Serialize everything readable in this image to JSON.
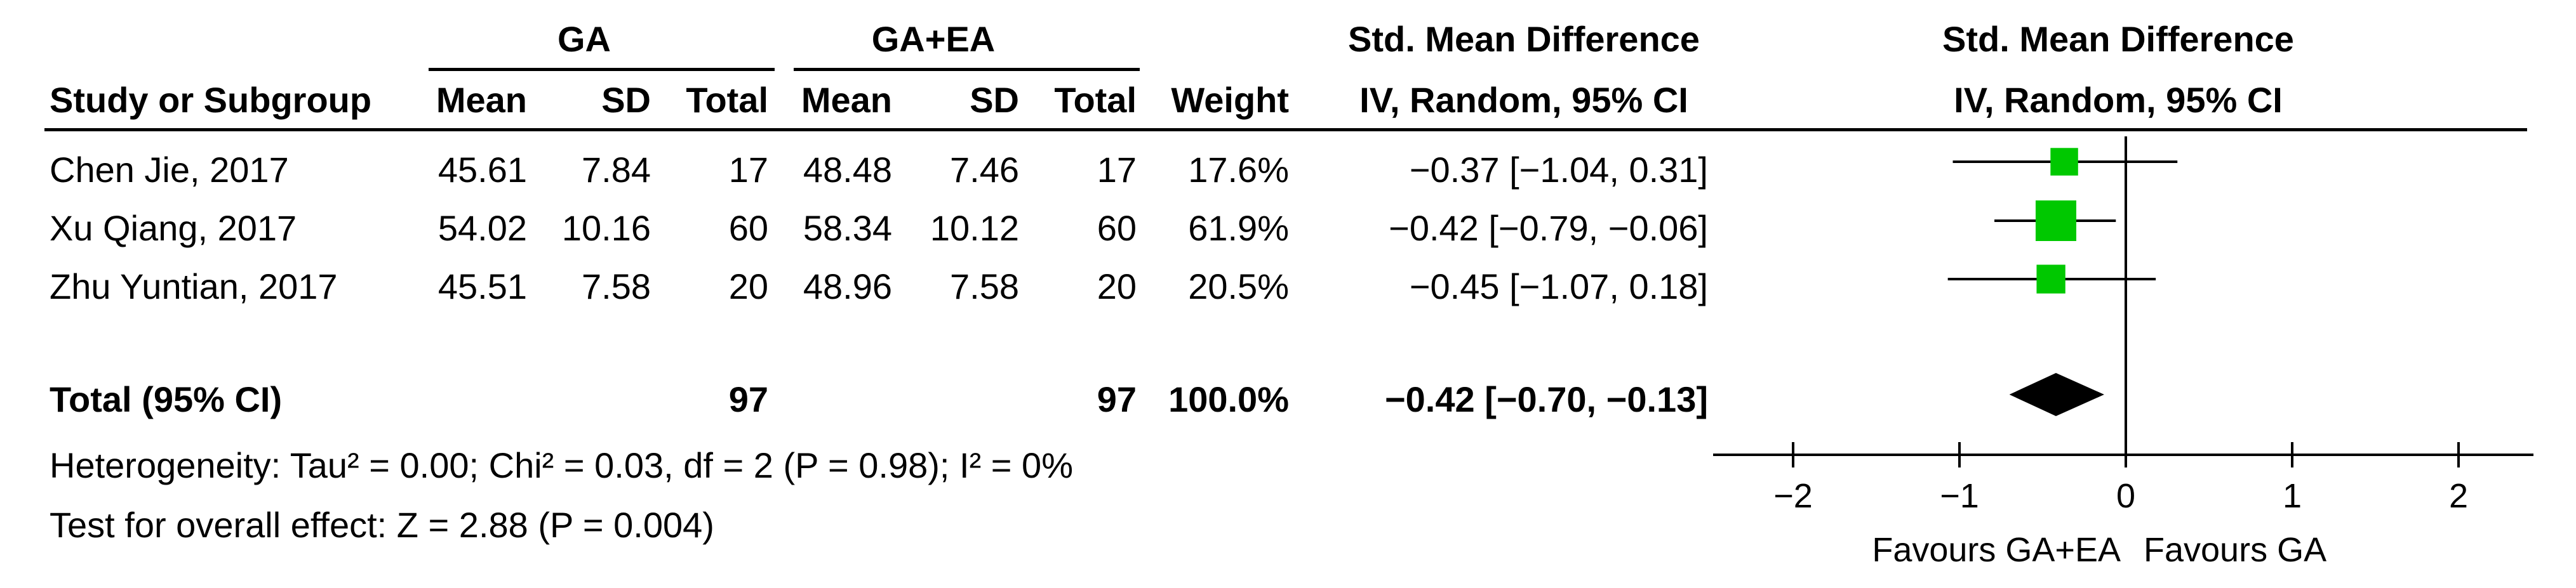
{
  "header": {
    "group1": "GA",
    "group2": "GA+EA",
    "effect_title": "Std. Mean Difference",
    "effect_subtitle": "IV, Random, 95% CI",
    "plot_title": "Std. Mean Difference",
    "plot_subtitle": "IV, Random, 95% CI"
  },
  "columns": {
    "study": "Study or Subgroup",
    "mean1": "Mean",
    "sd1": "SD",
    "total1": "Total",
    "mean2": "Mean",
    "sd2": "SD",
    "total2": "Total",
    "weight": "Weight"
  },
  "studies": [
    {
      "name": "Chen Jie, 2017",
      "mean1": "45.61",
      "sd1": "7.84",
      "total1": "17",
      "mean2": "48.48",
      "sd2": "7.46",
      "total2": "17",
      "weight": "17.6%",
      "ci_text": "−0.37 [−1.04, 0.31]"
    },
    {
      "name": "Xu Qiang, 2017",
      "mean1": "54.02",
      "sd1": "10.16",
      "total1": "60",
      "mean2": "58.34",
      "sd2": "10.12",
      "total2": "60",
      "weight": "61.9%",
      "ci_text": "−0.42 [−0.79, −0.06]"
    },
    {
      "name": "Zhu Yuntian, 2017",
      "mean1": "45.51",
      "sd1": "7.58",
      "total1": "20",
      "mean2": "48.96",
      "sd2": "7.58",
      "total2": "20",
      "weight": "20.5%",
      "ci_text": "−0.45 [−1.07, 0.18]"
    }
  ],
  "total": {
    "label": "Total (95% CI)",
    "total1": "97",
    "total2": "97",
    "weight": "100.0%",
    "ci_text": "−0.42 [−0.70, −0.13]"
  },
  "heterogeneity": "Heterogeneity: Tau² = 0.00; Chi² = 0.03, df = 2 (P = 0.98); I² = 0%",
  "overall_effect": "Test for overall effect: Z = 2.88 (P = 0.004)",
  "favours_left": "Favours GA+EA",
  "favours_right": "Favours GA",
  "chart_data": {
    "type": "forest",
    "axis": {
      "min": -2.5,
      "max": 2.5,
      "ticks": [
        -2,
        -1,
        0,
        1,
        2
      ],
      "tick_labels": [
        "−2",
        "−1",
        "0",
        "1",
        "2"
      ]
    },
    "studies": [
      {
        "estimate": -0.37,
        "lower": -1.04,
        "upper": 0.31,
        "weight": 17.6
      },
      {
        "estimate": -0.42,
        "lower": -0.79,
        "upper": -0.06,
        "weight": 61.9
      },
      {
        "estimate": -0.45,
        "lower": -1.07,
        "upper": 0.18,
        "weight": 20.5
      }
    ],
    "pooled": {
      "estimate": -0.42,
      "lower": -0.7,
      "upper": -0.13
    },
    "colors": {
      "marker": "#00c800",
      "diamond": "#000000",
      "line": "#000000"
    }
  }
}
